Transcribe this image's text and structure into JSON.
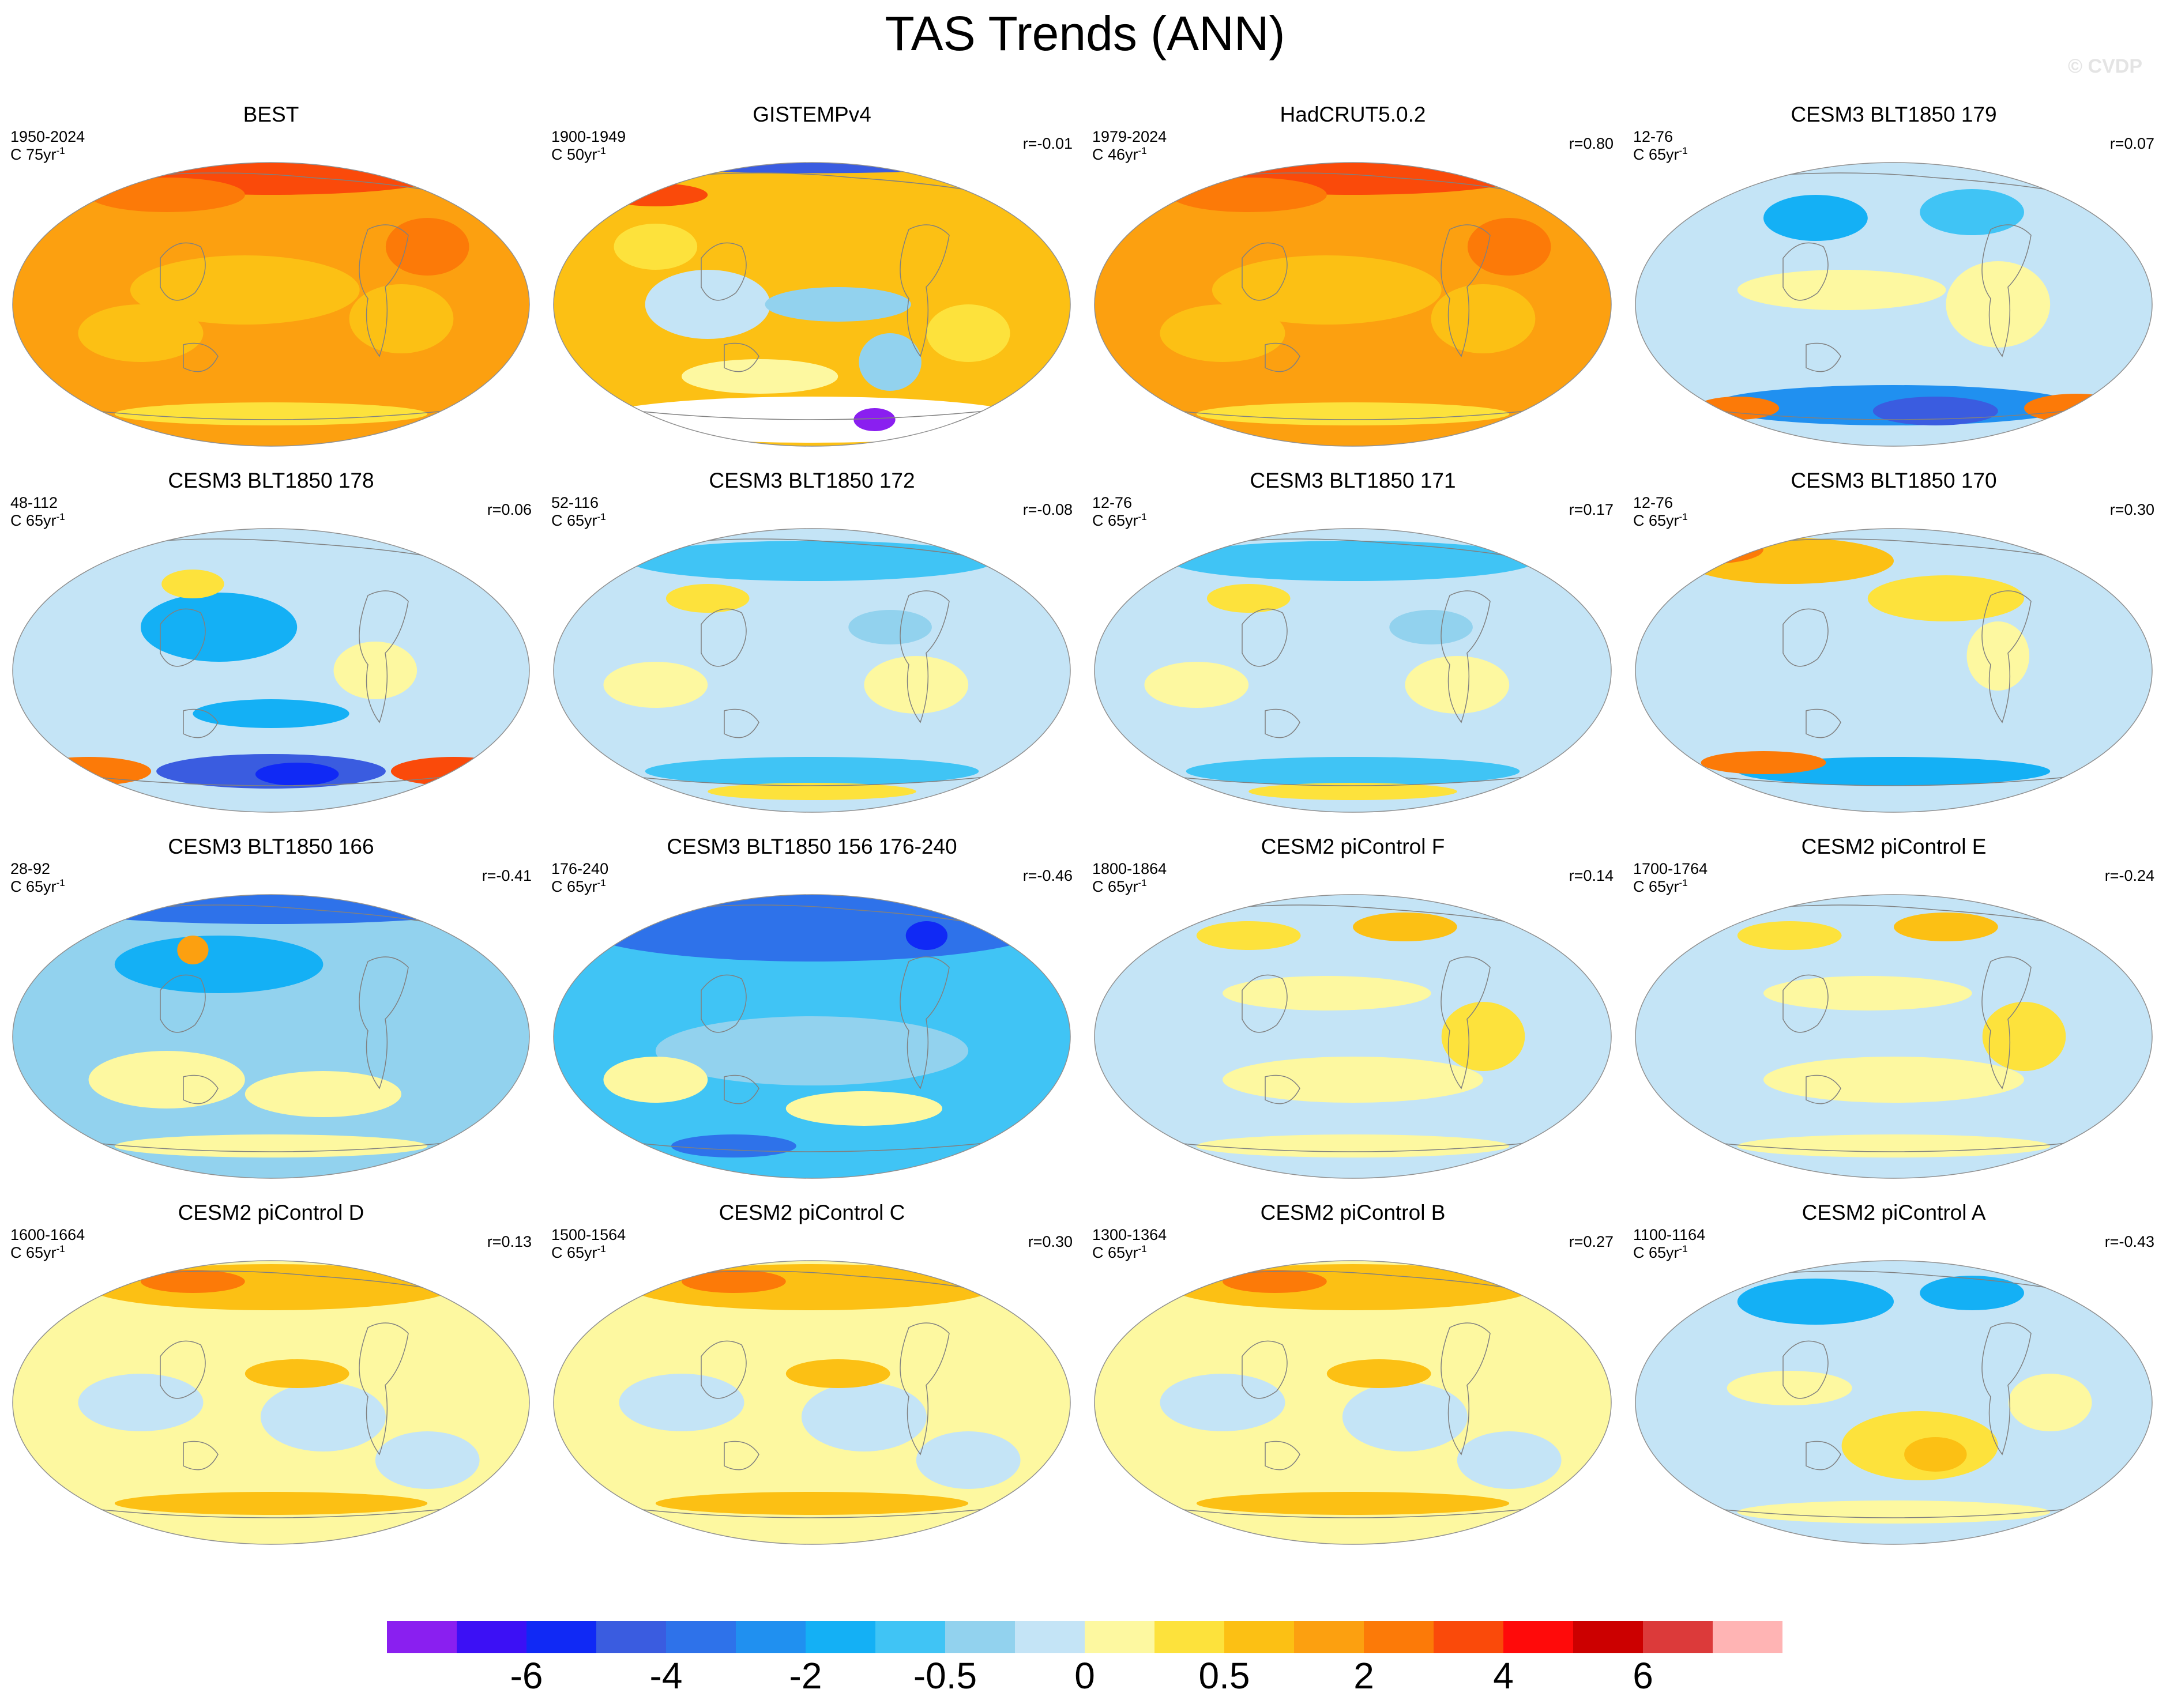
{
  "title": "TAS Trends (ANN)",
  "watermark": "© CVDP",
  "units_prefix": "C ",
  "units_suffix": "yr",
  "units_exp": "-1",
  "panels": [
    {
      "title": "BEST",
      "years": "1950-2024",
      "length": "75",
      "corr": "",
      "pattern": "obs_warm"
    },
    {
      "title": "GISTEMPv4",
      "years": "1900-1949",
      "length": "50",
      "corr": "r=-0.01",
      "pattern": "gistemp"
    },
    {
      "title": "HadCRUT5.0.2",
      "years": "1979-2024",
      "length": "46",
      "corr": "r=0.80",
      "pattern": "obs_warm"
    },
    {
      "title": "CESM3 BLT1850 179",
      "years": "12-76",
      "length": "65",
      "corr": "r=0.07",
      "pattern": "cool_so"
    },
    {
      "title": "CESM3 BLT1850 178",
      "years": "48-112",
      "length": "65",
      "corr": "r=0.06",
      "pattern": "cool_dipole"
    },
    {
      "title": "CESM3 BLT1850 172",
      "years": "52-116",
      "length": "65",
      "corr": "r=-0.08",
      "pattern": "cool"
    },
    {
      "title": "CESM3 BLT1850 171",
      "years": "12-76",
      "length": "65",
      "corr": "r=0.17",
      "pattern": "cool"
    },
    {
      "title": "CESM3 BLT1850 170",
      "years": "12-76",
      "length": "65",
      "corr": "r=0.30",
      "pattern": "mixed_warmN"
    },
    {
      "title": "CESM3 BLT1850 166",
      "years": "28-92",
      "length": "65",
      "corr": "r=-0.41",
      "pattern": "cool_strong"
    },
    {
      "title": "CESM3 BLT1850 156 176-240",
      "years": "176-240",
      "length": "65",
      "corr": "r=-0.46",
      "pattern": "cool_strongest"
    },
    {
      "title": "CESM2 piControl F",
      "years": "1800-1864",
      "length": "65",
      "corr": "r=0.14",
      "pattern": "mixed"
    },
    {
      "title": "CESM2 piControl E",
      "years": "1700-1764",
      "length": "65",
      "corr": "r=-0.24",
      "pattern": "mixed"
    },
    {
      "title": "CESM2 piControl D",
      "years": "1600-1664",
      "length": "65",
      "corr": "r=0.13",
      "pattern": "warm_mixed"
    },
    {
      "title": "CESM2 piControl C",
      "years": "1500-1564",
      "length": "65",
      "corr": "r=0.30",
      "pattern": "warm_mixed"
    },
    {
      "title": "CESM2 piControl B",
      "years": "1300-1364",
      "length": "65",
      "corr": "r=0.27",
      "pattern": "warm_mixed"
    },
    {
      "title": "CESM2 piControl A",
      "years": "1100-1164",
      "length": "65",
      "corr": "r=-0.43",
      "pattern": "mixed_coolN"
    }
  ],
  "colorbar": {
    "colors": [
      "#8a1ff0",
      "#3c10f5",
      "#1029f5",
      "#3a5ce0",
      "#2e72ea",
      "#2090f0",
      "#14b0f5",
      "#40c4f5",
      "#92d2ee",
      "#c4e4f6",
      "#fdf8a0",
      "#fde23c",
      "#fcc014",
      "#fca010",
      "#fc7a08",
      "#fa4a0a",
      "#ff0a0a",
      "#cc0000",
      "#dc3a3a",
      "#ffb4b4"
    ],
    "labels": [
      {
        "text": "-6",
        "boundary": 2
      },
      {
        "text": "-4",
        "boundary": 4
      },
      {
        "text": "-2",
        "boundary": 6
      },
      {
        "text": "-0.5",
        "boundary": 8
      },
      {
        "text": "0",
        "boundary": 10
      },
      {
        "text": "0.5",
        "boundary": 12
      },
      {
        "text": "2",
        "boundary": 14
      },
      {
        "text": "4",
        "boundary": 16
      },
      {
        "text": "6",
        "boundary": 18
      }
    ]
  }
}
